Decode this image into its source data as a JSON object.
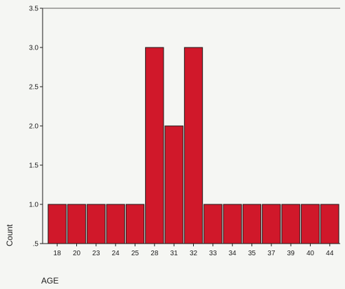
{
  "chart_data": {
    "type": "bar",
    "categories": [
      "18",
      "20",
      "23",
      "24",
      "25",
      "28",
      "31",
      "32",
      "33",
      "34",
      "35",
      "37",
      "39",
      "40",
      "44"
    ],
    "values": [
      1,
      1,
      1,
      1,
      1,
      3,
      2,
      3,
      1,
      1,
      1,
      1,
      1,
      1,
      1
    ],
    "xlabel": "AGE",
    "ylabel": "Count",
    "ylim": [
      0.5,
      3.5
    ],
    "yticks": [
      ".5",
      "1.0",
      "1.5",
      "2.0",
      "2.5",
      "3.0",
      "3.5"
    ],
    "grid": false,
    "colors": {
      "bar_fill": "#d0182a",
      "bar_stroke": "#1a1a1a",
      "background": "#f5f6f3",
      "axis": "#1a1a1a"
    }
  }
}
